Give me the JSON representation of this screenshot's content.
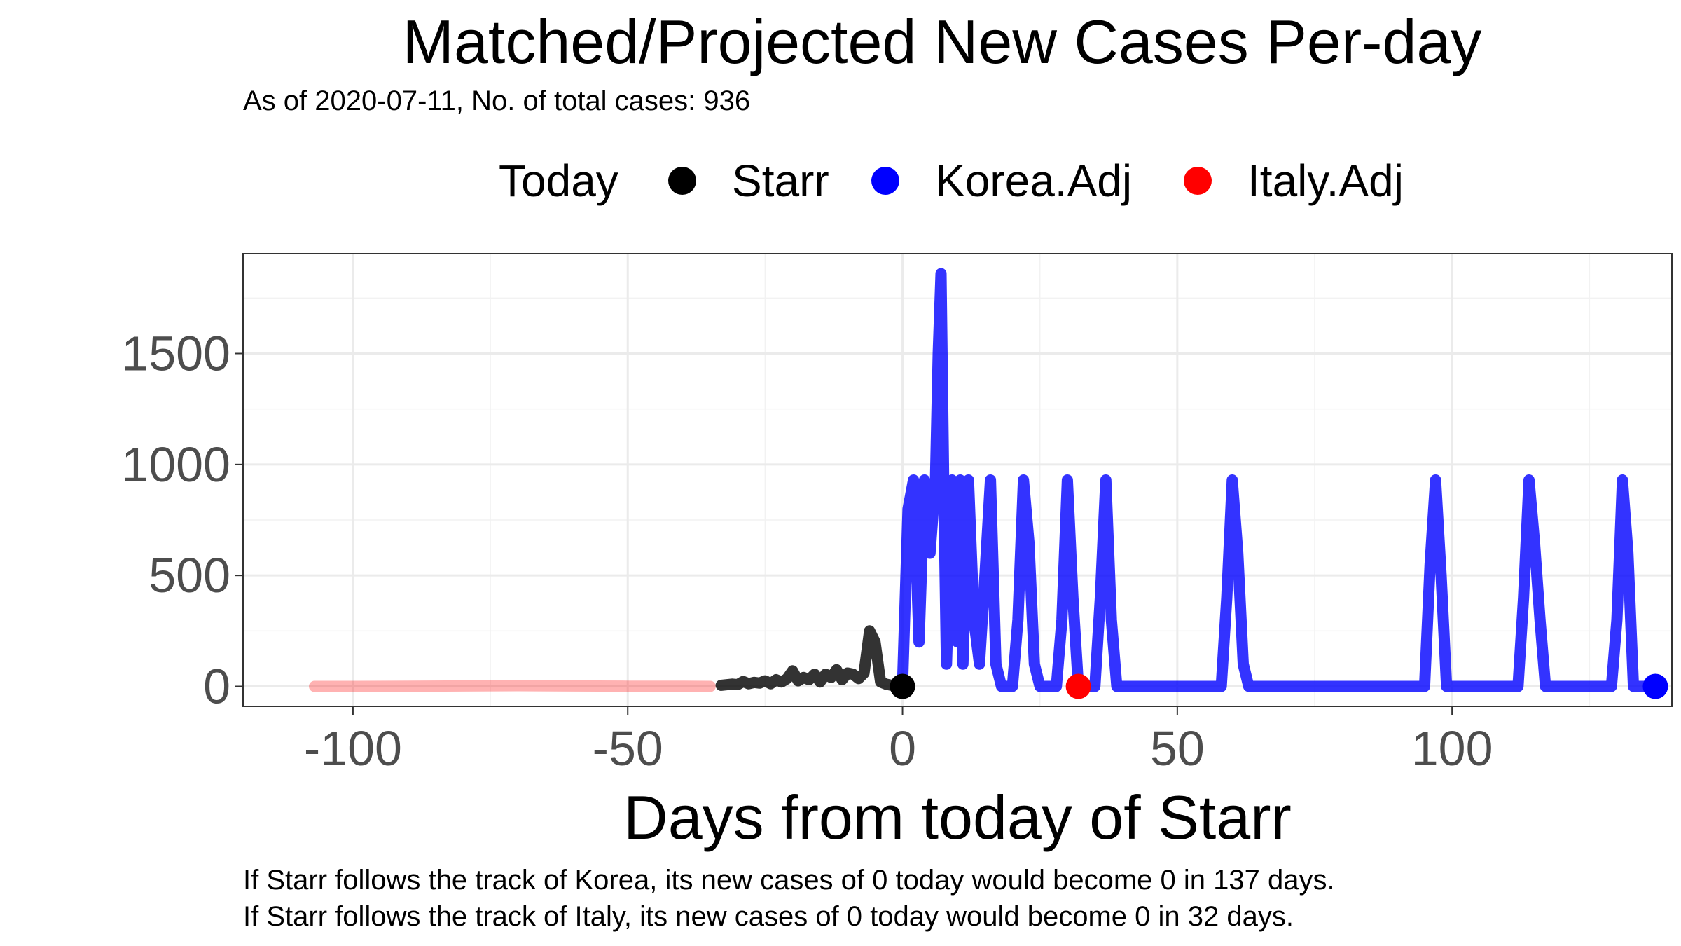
{
  "title": "Matched/Projected New Cases Per-day",
  "subtitle": "As of 2020-07-11, No. of total cases: 936",
  "legend": {
    "title": "Today",
    "items": [
      {
        "name": "Starr",
        "color": "#000000"
      },
      {
        "name": "Korea.Adj",
        "color": "#0000ff"
      },
      {
        "name": "Italy.Adj",
        "color": "#ff0000"
      }
    ]
  },
  "captions": [
    "If Starr follows the track of Korea, its new cases of 0 today would become 0 in 137 days.",
    "If Starr follows the track of Italy, its new cases of 0 today would become 0 in 32 days."
  ],
  "chart_data": {
    "type": "line",
    "title": "Matched/Projected New Cases Per-day",
    "xlabel": "Days from today of Starr",
    "ylabel": "",
    "xlim": [
      -120,
      140
    ],
    "ylim": [
      -90,
      1950
    ],
    "x_ticks": [
      -100,
      -50,
      0,
      50,
      100
    ],
    "x_tick_labels": [
      "-100",
      "-50",
      "0",
      "50",
      "100"
    ],
    "y_ticks": [
      0,
      500,
      1000,
      1500
    ],
    "y_tick_labels": [
      "0",
      "500",
      "1000",
      "1500"
    ],
    "grid": true,
    "legend_position": "top",
    "series": [
      {
        "name": "Italy.Adj",
        "color": "#ff0000",
        "opacity": 0.3,
        "x": [
          -107,
          -100,
          -90,
          -80,
          -70,
          -60,
          -50,
          -40,
          -35
        ],
        "y": [
          0,
          0,
          1,
          2,
          3,
          2,
          1,
          1,
          0
        ]
      },
      {
        "name": "Starr",
        "color": "#000000",
        "opacity": 0.8,
        "x": [
          -33,
          -31,
          -30,
          -29,
          -28,
          -27,
          -26,
          -25,
          -24,
          -23,
          -22,
          -21,
          -20,
          -19,
          -18,
          -17,
          -16,
          -15,
          -14,
          -13,
          -12,
          -11,
          -10,
          -9,
          -8,
          -7,
          -6,
          -5,
          -4,
          -3,
          -2,
          -1,
          0
        ],
        "y": [
          5,
          10,
          8,
          22,
          12,
          18,
          15,
          25,
          12,
          30,
          20,
          35,
          70,
          25,
          40,
          30,
          55,
          20,
          55,
          40,
          75,
          30,
          60,
          55,
          35,
          60,
          250,
          200,
          20,
          10,
          5,
          2,
          0
        ]
      },
      {
        "name": "Korea.Adj",
        "color": "#0000ff",
        "opacity": 0.8,
        "x": [
          0,
          1,
          2,
          3,
          4,
          5,
          6,
          6.5,
          7,
          7.5,
          8,
          9,
          10,
          10.5,
          11,
          12,
          13,
          14,
          15,
          16,
          17,
          18,
          19,
          20,
          21,
          22,
          23,
          24,
          25,
          26,
          27,
          28,
          29,
          30,
          31,
          32,
          33,
          34,
          35,
          36,
          37,
          38,
          39,
          40,
          50,
          58,
          59,
          60,
          61,
          62,
          63,
          70,
          80,
          90,
          95,
          96,
          97,
          98,
          99,
          105,
          112,
          113,
          114,
          115,
          116,
          117,
          125,
          129,
          130,
          131,
          132,
          133,
          134,
          137
        ],
        "y": [
          0,
          800,
          930,
          200,
          930,
          600,
          930,
          1500,
          1860,
          900,
          100,
          930,
          200,
          930,
          100,
          930,
          300,
          100,
          500,
          930,
          100,
          0,
          0,
          0,
          300,
          930,
          650,
          100,
          0,
          0,
          0,
          0,
          300,
          930,
          400,
          0,
          0,
          0,
          0,
          400,
          930,
          300,
          0,
          0,
          0,
          0,
          400,
          930,
          600,
          100,
          0,
          0,
          0,
          0,
          0,
          550,
          930,
          500,
          0,
          0,
          0,
          400,
          930,
          650,
          300,
          0,
          0,
          0,
          300,
          930,
          600,
          0,
          0,
          0
        ]
      }
    ],
    "markers": [
      {
        "name": "Starr",
        "x": 0,
        "y": 0,
        "color": "#000000"
      },
      {
        "name": "Korea.Adj",
        "x": 137,
        "y": 0,
        "color": "#0000ff"
      },
      {
        "name": "Italy.Adj",
        "x": 32,
        "y": 0,
        "color": "#ff0000"
      }
    ]
  }
}
